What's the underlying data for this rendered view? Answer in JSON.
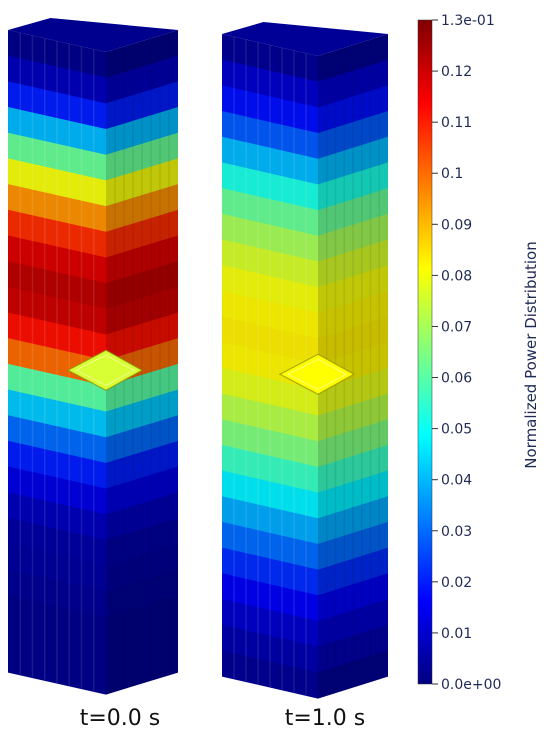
{
  "captions": {
    "left": "t=0.0 s",
    "right": "t=1.0 s"
  },
  "colorbar": {
    "title": "Normalized Power Distribution",
    "range": [
      0,
      0.13
    ],
    "ticks": [
      {
        "value": 0.13,
        "label": "1.3e-01"
      },
      {
        "value": 0.12,
        "label": "0.12"
      },
      {
        "value": 0.11,
        "label": "0.11"
      },
      {
        "value": 0.1,
        "label": "0.1"
      },
      {
        "value": 0.09,
        "label": "0.09"
      },
      {
        "value": 0.08,
        "label": "0.08"
      },
      {
        "value": 0.07,
        "label": "0.07"
      },
      {
        "value": 0.06,
        "label": "0.06"
      },
      {
        "value": 0.05,
        "label": "0.05"
      },
      {
        "value": 0.04,
        "label": "0.04"
      },
      {
        "value": 0.03,
        "label": "0.03"
      },
      {
        "value": 0.02,
        "label": "0.02"
      },
      {
        "value": 0.01,
        "label": "0.01"
      },
      {
        "value": 0.0,
        "label": "0.0e+00"
      }
    ],
    "colormap": [
      "#00007f",
      "#0000ff",
      "#007fff",
      "#00ffff",
      "#7fff7f",
      "#ffff00",
      "#ff7f00",
      "#ff0000",
      "#7f0000"
    ]
  },
  "columns": [
    {
      "time": "t=0.0 s",
      "layer_values": [
        0.002,
        0.008,
        0.02,
        0.04,
        0.062,
        0.08,
        0.095,
        0.108,
        0.118,
        0.122,
        0.12,
        0.112,
        0.1,
        0.06,
        0.042,
        0.03,
        0.02,
        0.013,
        0.008,
        0.005,
        0.004,
        0.003,
        0.002,
        0.002,
        0.002
      ],
      "cut_top_value": 0.075
    },
    {
      "time": "t=1.0 s",
      "layer_values": [
        0.003,
        0.01,
        0.018,
        0.028,
        0.04,
        0.052,
        0.062,
        0.07,
        0.076,
        0.08,
        0.082,
        0.083,
        0.082,
        0.078,
        0.072,
        0.065,
        0.056,
        0.047,
        0.038,
        0.03,
        0.022,
        0.015,
        0.01,
        0.006,
        0.003
      ],
      "cut_top_value": 0.082
    }
  ]
}
